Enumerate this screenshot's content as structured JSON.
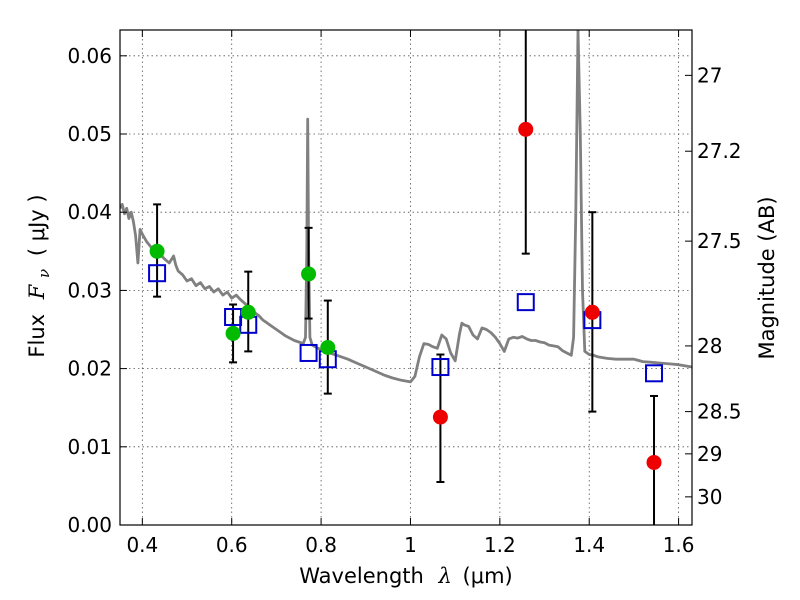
{
  "chart_data": {
    "type": "scatter",
    "xlabel_text": "Wavelength",
    "xlabel_symbol": "λ",
    "xlabel_unit": "(μm)",
    "ylabel_text": "Flux",
    "ylabel_symbol": "F",
    "ylabel_sub": "ν",
    "ylabel_unit": "( μJy )",
    "y2label": "Magnitude (AB)",
    "xlim": [
      0.35,
      1.63
    ],
    "ylim": [
      0.0,
      0.0633
    ],
    "x_ticks": [
      0.4,
      0.6,
      0.8,
      1.0,
      1.2,
      1.4,
      1.6
    ],
    "x_tick_labels": [
      "0.4",
      "0.6",
      "0.8",
      "1",
      "1.2",
      "1.4",
      "1.6"
    ],
    "y_ticks": [
      0.0,
      0.01,
      0.02,
      0.03,
      0.04,
      0.05,
      0.06
    ],
    "y_tick_labels": [
      "0.00",
      "0.01",
      "0.02",
      "0.03",
      "0.04",
      "0.05",
      "0.06"
    ],
    "y2_ticks": [
      {
        "label": "27",
        "flux": 0.0575
      },
      {
        "label": "27.2",
        "flux": 0.0478
      },
      {
        "label": "27.5",
        "flux": 0.0363
      },
      {
        "label": "28",
        "flux": 0.0229
      },
      {
        "label": "28.5",
        "flux": 0.0145
      },
      {
        "label": "29",
        "flux": 0.0091
      },
      {
        "label": "30",
        "flux": 0.0036
      }
    ],
    "grid": true,
    "colors": {
      "spectrum": "#808080",
      "green_points": "#00bb00",
      "red_points": "#ee0000",
      "squares": "#0000cc",
      "errorbars": "#000000"
    },
    "spectrum": [
      [
        0.35,
        0.0405
      ],
      [
        0.355,
        0.041
      ],
      [
        0.36,
        0.0398
      ],
      [
        0.365,
        0.0405
      ],
      [
        0.37,
        0.0392
      ],
      [
        0.375,
        0.04
      ],
      [
        0.38,
        0.0388
      ],
      [
        0.385,
        0.037
      ],
      [
        0.39,
        0.0335
      ],
      [
        0.395,
        0.0378
      ],
      [
        0.4,
        0.0372
      ],
      [
        0.41,
        0.0362
      ],
      [
        0.42,
        0.0355
      ],
      [
        0.43,
        0.0352
      ],
      [
        0.44,
        0.0346
      ],
      [
        0.45,
        0.034
      ],
      [
        0.46,
        0.0335
      ],
      [
        0.47,
        0.0344
      ],
      [
        0.475,
        0.0332
      ],
      [
        0.48,
        0.0325
      ],
      [
        0.49,
        0.032
      ],
      [
        0.5,
        0.0312
      ],
      [
        0.51,
        0.0315
      ],
      [
        0.52,
        0.0306
      ],
      [
        0.53,
        0.031
      ],
      [
        0.54,
        0.0302
      ],
      [
        0.55,
        0.0305
      ],
      [
        0.56,
        0.0298
      ],
      [
        0.57,
        0.0302
      ],
      [
        0.58,
        0.0294
      ],
      [
        0.59,
        0.0298
      ],
      [
        0.6,
        0.029
      ],
      [
        0.61,
        0.0294
      ],
      [
        0.62,
        0.0288
      ],
      [
        0.63,
        0.0283
      ],
      [
        0.64,
        0.0278
      ],
      [
        0.65,
        0.0272
      ],
      [
        0.66,
        0.0268
      ],
      [
        0.67,
        0.0262
      ],
      [
        0.68,
        0.0258
      ],
      [
        0.69,
        0.0254
      ],
      [
        0.7,
        0.025
      ],
      [
        0.71,
        0.0246
      ],
      [
        0.72,
        0.0242
      ],
      [
        0.73,
        0.0239
      ],
      [
        0.74,
        0.0236
      ],
      [
        0.75,
        0.0234
      ],
      [
        0.76,
        0.0232
      ],
      [
        0.765,
        0.024
      ],
      [
        0.768,
        0.035
      ],
      [
        0.77,
        0.0519
      ],
      [
        0.772,
        0.035
      ],
      [
        0.775,
        0.024
      ],
      [
        0.78,
        0.023
      ],
      [
        0.79,
        0.0227
      ],
      [
        0.8,
        0.0224
      ],
      [
        0.82,
        0.022
      ],
      [
        0.84,
        0.0216
      ],
      [
        0.86,
        0.0212
      ],
      [
        0.88,
        0.0207
      ],
      [
        0.9,
        0.0202
      ],
      [
        0.92,
        0.0197
      ],
      [
        0.94,
        0.0192
      ],
      [
        0.96,
        0.0188
      ],
      [
        0.98,
        0.0185
      ],
      [
        1.0,
        0.0183
      ],
      [
        1.01,
        0.019
      ],
      [
        1.02,
        0.0215
      ],
      [
        1.03,
        0.0232
      ],
      [
        1.04,
        0.0231
      ],
      [
        1.05,
        0.0228
      ],
      [
        1.06,
        0.0226
      ],
      [
        1.07,
        0.0243
      ],
      [
        1.08,
        0.0238
      ],
      [
        1.09,
        0.022
      ],
      [
        1.1,
        0.021
      ],
      [
        1.11,
        0.0245
      ],
      [
        1.115,
        0.0258
      ],
      [
        1.12,
        0.0256
      ],
      [
        1.13,
        0.0254
      ],
      [
        1.14,
        0.0243
      ],
      [
        1.15,
        0.0238
      ],
      [
        1.16,
        0.0252
      ],
      [
        1.17,
        0.025
      ],
      [
        1.18,
        0.0246
      ],
      [
        1.19,
        0.024
      ],
      [
        1.2,
        0.0232
      ],
      [
        1.21,
        0.0222
      ],
      [
        1.22,
        0.0238
      ],
      [
        1.23,
        0.024
      ],
      [
        1.24,
        0.0239
      ],
      [
        1.25,
        0.0241
      ],
      [
        1.26,
        0.0238
      ],
      [
        1.27,
        0.0236
      ],
      [
        1.28,
        0.0236
      ],
      [
        1.29,
        0.0234
      ],
      [
        1.3,
        0.0233
      ],
      [
        1.31,
        0.023
      ],
      [
        1.32,
        0.0229
      ],
      [
        1.33,
        0.0228
      ],
      [
        1.34,
        0.0223
      ],
      [
        1.35,
        0.022
      ],
      [
        1.36,
        0.0217
      ],
      [
        1.365,
        0.024
      ],
      [
        1.37,
        0.04
      ],
      [
        1.375,
        0.0633
      ],
      [
        1.38,
        0.05
      ],
      [
        1.385,
        0.03
      ],
      [
        1.39,
        0.0222
      ],
      [
        1.4,
        0.0218
      ],
      [
        1.41,
        0.0217
      ],
      [
        1.42,
        0.0215
      ],
      [
        1.44,
        0.0213
      ],
      [
        1.46,
        0.0212
      ],
      [
        1.48,
        0.0212
      ],
      [
        1.5,
        0.0212
      ],
      [
        1.52,
        0.0209
      ],
      [
        1.54,
        0.0208
      ],
      [
        1.56,
        0.0207
      ],
      [
        1.58,
        0.0206
      ],
      [
        1.6,
        0.0205
      ],
      [
        1.62,
        0.0203
      ],
      [
        1.63,
        0.0202
      ]
    ],
    "green_points": [
      {
        "x": 0.433,
        "y": 0.035,
        "err_lo": 0.0292,
        "err_hi": 0.041
      },
      {
        "x": 0.603,
        "y": 0.0245,
        "err_lo": 0.0208,
        "err_hi": 0.0282
      },
      {
        "x": 0.637,
        "y": 0.0272,
        "err_lo": 0.0222,
        "err_hi": 0.0324
      },
      {
        "x": 0.772,
        "y": 0.0321,
        "err_lo": 0.0264,
        "err_hi": 0.038
      },
      {
        "x": 0.815,
        "y": 0.0227,
        "err_lo": 0.0168,
        "err_hi": 0.0287
      }
    ],
    "red_points": [
      {
        "x": 1.067,
        "y": 0.0138,
        "err_lo": 0.0055,
        "err_hi": 0.0218
      },
      {
        "x": 1.258,
        "y": 0.0506,
        "err_lo": 0.0347,
        "err_hi": 0.0633
      },
      {
        "x": 1.407,
        "y": 0.0272,
        "err_lo": 0.0145,
        "err_hi": 0.04
      },
      {
        "x": 1.545,
        "y": 0.008,
        "err_lo": 0.0,
        "err_hi": 0.0165
      }
    ],
    "squares": [
      {
        "x": 0.433,
        "y": 0.0322
      },
      {
        "x": 0.603,
        "y": 0.0266
      },
      {
        "x": 0.637,
        "y": 0.0256
      },
      {
        "x": 0.772,
        "y": 0.022
      },
      {
        "x": 0.815,
        "y": 0.0212
      },
      {
        "x": 1.067,
        "y": 0.0202
      },
      {
        "x": 1.258,
        "y": 0.0285
      },
      {
        "x": 1.407,
        "y": 0.0262
      },
      {
        "x": 1.545,
        "y": 0.0194
      }
    ]
  }
}
